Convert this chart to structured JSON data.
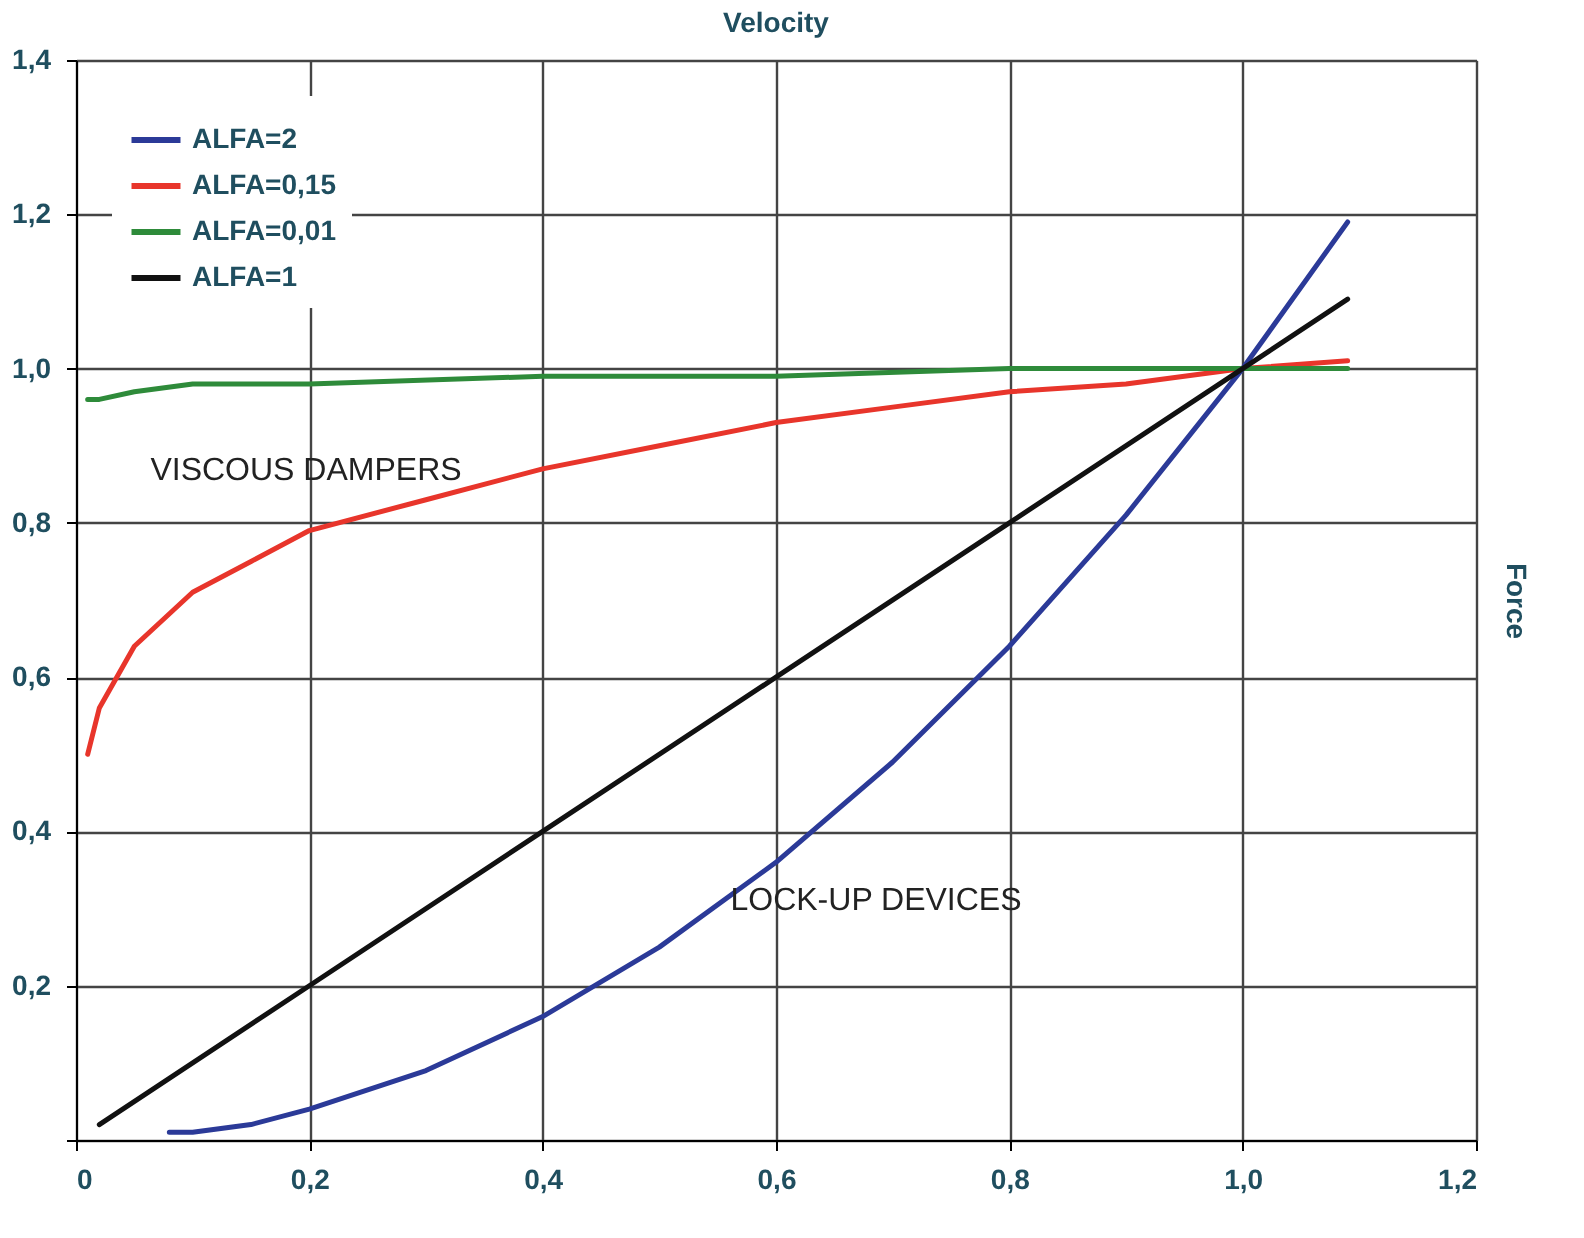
{
  "chart_data": {
    "type": "line",
    "xlabel": "Velocity",
    "ylabel": "Force",
    "xlim": [
      0,
      1.2
    ],
    "ylim": [
      0,
      1.4
    ],
    "xticks": [
      0,
      {
        "value": 0.2,
        "label": "0,2"
      },
      {
        "value": 0.4,
        "label": "0,4"
      },
      {
        "value": 0.6,
        "label": "0,6"
      },
      {
        "value": 0.8,
        "label": "0,8"
      },
      {
        "value": 1.0,
        "label": "1,0"
      },
      {
        "value": 1.2,
        "label": "1,2"
      }
    ],
    "yticks": [
      {
        "value": 0,
        "label": null
      },
      {
        "value": 0.2,
        "label": "0,2"
      },
      {
        "value": 0.4,
        "label": "0,4"
      },
      {
        "value": 0.6,
        "label": "0,6"
      },
      {
        "value": 0.8,
        "label": "0,8"
      },
      {
        "value": 1.0,
        "label": "1,0"
      },
      {
        "value": 1.2,
        "label": "1,2"
      },
      {
        "value": 1.4,
        "label": "1,4"
      }
    ],
    "grid": true,
    "legend": "top left",
    "marker": "none",
    "line_style": "solid",
    "series": [
      {
        "name": "ALFA=2",
        "color": "#2b3a98",
        "x": [
          0.08,
          0.1,
          0.15,
          0.2,
          0.3,
          0.4,
          0.5,
          0.6,
          0.7,
          0.8,
          0.9,
          1.0,
          1.09
        ],
        "values": [
          0.01,
          0.01,
          0.02,
          0.04,
          0.09,
          0.16,
          0.25,
          0.36,
          0.49,
          0.64,
          0.81,
          1.0,
          1.19
        ]
      },
      {
        "name": "ALFA=0,15",
        "color": "#e8352b",
        "x": [
          0.01,
          0.02,
          0.05,
          0.1,
          0.15,
          0.2,
          0.3,
          0.4,
          0.5,
          0.6,
          0.7,
          0.8,
          0.9,
          1.0,
          1.09
        ],
        "values": [
          0.5,
          0.56,
          0.64,
          0.71,
          0.75,
          0.79,
          0.83,
          0.87,
          0.9,
          0.93,
          0.95,
          0.97,
          0.98,
          1.0,
          1.01
        ]
      },
      {
        "name": "ALFA=0,01",
        "color": "#2e8b3a",
        "x": [
          0.01,
          0.02,
          0.05,
          0.1,
          0.2,
          0.4,
          0.6,
          0.8,
          1.0,
          1.09
        ],
        "values": [
          0.96,
          0.96,
          0.97,
          0.98,
          0.98,
          0.99,
          0.99,
          1.0,
          1.0,
          1.0
        ]
      },
      {
        "name": "ALFA=1",
        "color": "#111111",
        "x": [
          0.02,
          0.2,
          0.4,
          0.6,
          0.8,
          1.0,
          1.09
        ],
        "values": [
          0.02,
          0.2,
          0.4,
          0.6,
          0.8,
          1.0,
          1.09
        ]
      }
    ],
    "annotations": [
      "VISCOUS DAMPERS",
      "LOCK-UP DEVICES"
    ]
  }
}
